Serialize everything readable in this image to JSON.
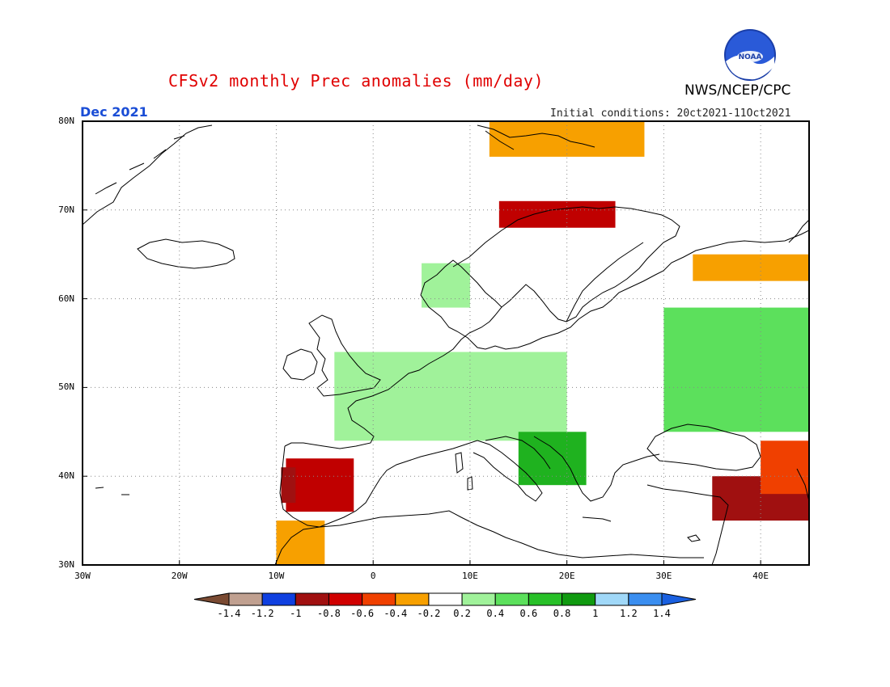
{
  "header": {
    "title": "CFSv2 monthly Prec anomalies (mm/day)",
    "agency": "NWS/NCEP/CPC",
    "logo_text": "NOAA",
    "target_month": "Dec 2021",
    "initial_conditions": "Initial conditions: 20ct2021-11Oct2021"
  },
  "map": {
    "region": "Europe",
    "lat_range": [
      30,
      80
    ],
    "lon_range": [
      -30,
      45
    ],
    "lat_labels": [
      "30N",
      "40N",
      "50N",
      "60N",
      "70N",
      "80N"
    ],
    "lon_labels": [
      "30W",
      "20W",
      "10W",
      "0",
      "10E",
      "20E",
      "30E",
      "40E"
    ],
    "grid": "dotted",
    "colors": {
      "land_outline": "#000000",
      "wet_light": "#a0f29a",
      "wet_med": "#5ce05c",
      "wet_dark": "#1fb21f",
      "dry_light": "#f7a000",
      "dry_med": "#f04000",
      "dry_dark": "#c00000",
      "dry_vdark": "#a01010",
      "brown": "#8b5a3c",
      "blue": "#1040e0"
    },
    "anomaly_regions": [
      {
        "name": "Iberia west",
        "lat": [
          36,
          42
        ],
        "lon": [
          -9,
          -2
        ],
        "level": -0.8
      },
      {
        "name": "Iberia coast",
        "lat": [
          37,
          41
        ],
        "lon": [
          -9.5,
          -8
        ],
        "level": -1.0
      },
      {
        "name": "Morocco",
        "lat": [
          30,
          35
        ],
        "lon": [
          -10,
          -5
        ],
        "level": -0.4
      },
      {
        "name": "Turkey-Syria",
        "lat": [
          35,
          40
        ],
        "lon": [
          35,
          45
        ],
        "level": -1.0
      },
      {
        "name": "Caucasus",
        "lat": [
          38,
          44
        ],
        "lon": [
          40,
          45
        ],
        "level": -0.6
      },
      {
        "name": "Scandinavia north",
        "lat": [
          68,
          71
        ],
        "lon": [
          13,
          25
        ],
        "level": -0.8
      },
      {
        "name": "Svalbard",
        "lat": [
          76,
          80
        ],
        "lon": [
          12,
          28
        ],
        "level": -0.4
      },
      {
        "name": "NW Russia",
        "lat": [
          62,
          65
        ],
        "lon": [
          33,
          45
        ],
        "level": -0.4
      },
      {
        "name": "Central Europe",
        "lat": [
          44,
          54
        ],
        "lon": [
          -4,
          20
        ],
        "level": 0.2
      },
      {
        "name": "Balkans",
        "lat": [
          39,
          45
        ],
        "lon": [
          15,
          22
        ],
        "level": 0.6
      },
      {
        "name": "Ukraine-Russia",
        "lat": [
          45,
          59
        ],
        "lon": [
          30,
          45
        ],
        "level": 0.4
      },
      {
        "name": "Norway coast",
        "lat": [
          59,
          64
        ],
        "lon": [
          5,
          10
        ],
        "level": 0.2
      }
    ]
  },
  "colorbar": {
    "ticks": [
      "-1.4",
      "-1.2",
      "-1",
      "-0.8",
      "-0.6",
      "-0.4",
      "-0.2",
      "0.2",
      "0.4",
      "0.6",
      "0.8",
      "1",
      "1.2",
      "1.4"
    ],
    "colors": [
      "#7a4a32",
      "#c0a090",
      "#1040e0",
      "#a01010",
      "#d00000",
      "#f04000",
      "#f7a000",
      "#ffffff",
      "#a0f29a",
      "#5ce05c",
      "#28c028",
      "#109a10",
      "#a0d8f8",
      "#3a8ef0",
      "#1a60e0"
    ]
  }
}
